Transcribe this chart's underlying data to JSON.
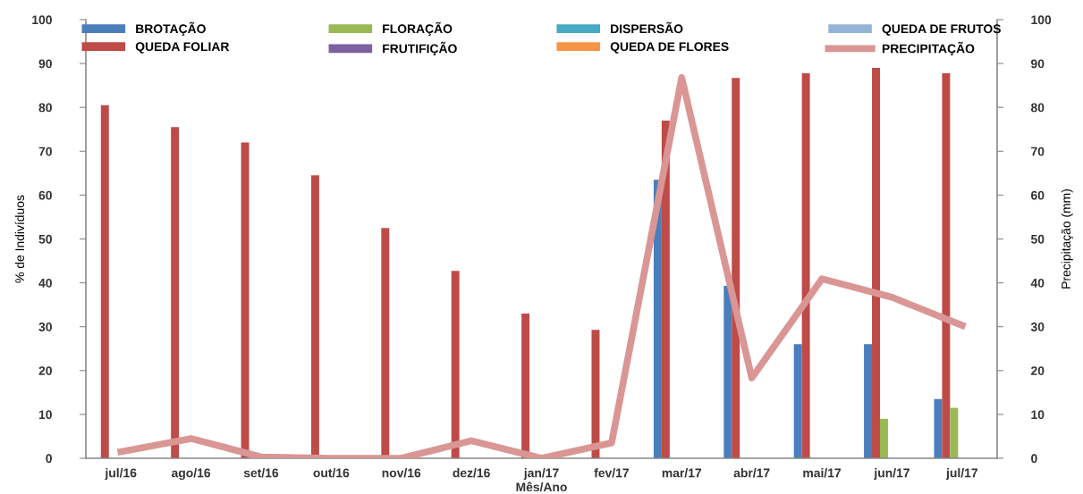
{
  "chart_data": {
    "type": "bar",
    "xlabel": "Mês/Ano",
    "ylabel": "% de Indivíduos",
    "y2label": "Precipitação (mm)",
    "categories": [
      "jul/16",
      "ago/16",
      "set/16",
      "out/16",
      "nov/16",
      "dez/16",
      "jan/17",
      "fev/17",
      "mar/17",
      "abr/17",
      "mai/17",
      "jun/17",
      "jul/17"
    ],
    "series": [
      {
        "name": "BROTAÇÃO",
        "color": "#4a7ebb",
        "values": [
          0,
          0,
          0,
          0,
          0,
          0,
          0,
          0,
          63.5,
          39.3,
          26,
          26,
          13.5
        ]
      },
      {
        "name": "QUEDA FOLIAR",
        "color": "#be4b48",
        "values": [
          80.5,
          75.5,
          72,
          64.5,
          52.5,
          42.7,
          33,
          29.3,
          77,
          86.7,
          87.8,
          89,
          87.8
        ]
      },
      {
        "name": "FLORAÇÃO",
        "color": "#98b954",
        "values": [
          0,
          0,
          0,
          0,
          0,
          0,
          0,
          0,
          0,
          0,
          0,
          9,
          11.5
        ]
      },
      {
        "name": "FRUTIFIÇÃO",
        "color": "#7d60a0",
        "values": [
          0,
          0,
          0,
          0,
          0,
          0,
          0,
          0,
          0,
          0,
          0,
          0,
          0
        ]
      },
      {
        "name": "DISPERSÃO",
        "color": "#46aac5",
        "values": [
          0,
          0,
          0,
          0,
          0,
          0,
          0,
          0,
          0,
          0,
          0,
          0,
          0
        ]
      },
      {
        "name": "QUEDA DE FLORES",
        "color": "#f79646",
        "values": [
          0,
          0,
          0,
          0,
          0,
          0,
          0,
          0,
          0,
          0,
          0,
          0,
          0
        ]
      },
      {
        "name": "QUEDA DE FRUTOS",
        "color": "#95b3d7",
        "values": [
          0,
          0,
          0,
          0,
          0,
          0,
          0,
          0,
          0,
          0,
          0,
          0,
          0
        ]
      },
      {
        "name": "PRECIPITAÇÃO",
        "color": "#d99694",
        "type": "line",
        "axis": "y2",
        "values": [
          1.5,
          4.5,
          0.3,
          0,
          0,
          4,
          0,
          3.5,
          86.8,
          18.3,
          40.9,
          36.7,
          30.3
        ]
      }
    ],
    "ylim": [
      0,
      100
    ],
    "yticks": [
      0,
      10,
      20,
      30,
      40,
      50,
      60,
      70,
      80,
      90,
      100
    ],
    "y2lim": [
      0,
      100
    ],
    "y2ticks": [
      0,
      10,
      20,
      30,
      40,
      50,
      60,
      70,
      80,
      90,
      100
    ],
    "grid": false,
    "legend": "top",
    "marker": "none",
    "line_style": "solid"
  }
}
